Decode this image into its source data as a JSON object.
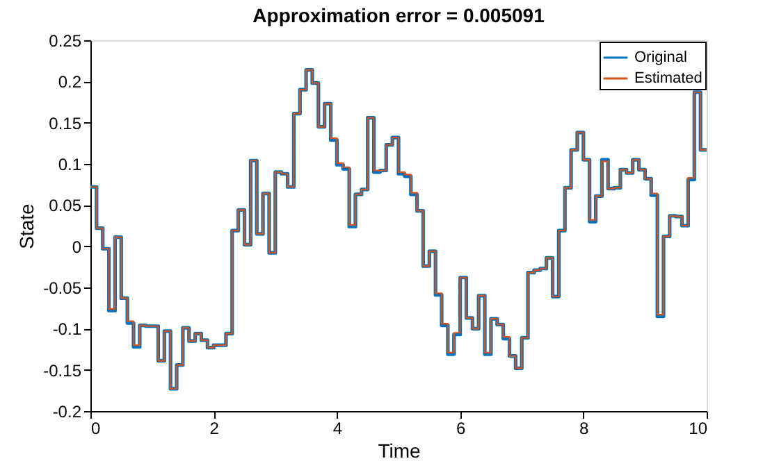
{
  "chart_data": {
    "type": "step",
    "title": "Approximation error =  0.005091",
    "xlabel": "Time",
    "ylabel": "State",
    "x": [
      0,
      0.1,
      0.2,
      0.3,
      0.4,
      0.5,
      0.6,
      0.7,
      0.8,
      0.9,
      1,
      1.1,
      1.2,
      1.3,
      1.4,
      1.5,
      1.6,
      1.7,
      1.8,
      1.9,
      2,
      2.1,
      2.2,
      2.3,
      2.4,
      2.5,
      2.6,
      2.7,
      2.8,
      2.9,
      3,
      3.1,
      3.2,
      3.3,
      3.4,
      3.5,
      3.6,
      3.7,
      3.8,
      3.9,
      4,
      4.1,
      4.2,
      4.3,
      4.4,
      4.5,
      4.6,
      4.7,
      4.8,
      4.9,
      5,
      5.1,
      5.2,
      5.3,
      5.4,
      5.5,
      5.6,
      5.7,
      5.8,
      5.9,
      6,
      6.1,
      6.2,
      6.3,
      6.4,
      6.5,
      6.6,
      6.7,
      6.8,
      6.9,
      7,
      7.1,
      7.2,
      7.3,
      7.4,
      7.5,
      7.6,
      7.7,
      7.8,
      7.9,
      8,
      8.1,
      8.2,
      8.3,
      8.4,
      8.5,
      8.6,
      8.7,
      8.8,
      8.9,
      9,
      9.1,
      9.2,
      9.3,
      9.4,
      9.5,
      9.6,
      9.7,
      9.8,
      9.9,
      10
    ],
    "series": [
      {
        "name": "Original",
        "color": "#0072bd",
        "values": [
          0.072,
          0.022,
          -0.003,
          -0.078,
          0.011,
          -0.063,
          -0.093,
          -0.122,
          -0.096,
          -0.097,
          -0.097,
          -0.139,
          -0.103,
          -0.173,
          -0.144,
          -0.099,
          -0.115,
          -0.106,
          -0.114,
          -0.123,
          -0.12,
          -0.12,
          -0.106,
          0.019,
          0.044,
          0.002,
          0.104,
          0.015,
          0.064,
          -0.008,
          0.09,
          0.088,
          0.072,
          0.161,
          0.19,
          0.214,
          0.198,
          0.145,
          0.173,
          0.129,
          0.099,
          0.094,
          0.024,
          0.063,
          0.069,
          0.156,
          0.09,
          0.092,
          0.123,
          0.132,
          0.088,
          0.085,
          0.063,
          0.043,
          -0.024,
          -0.006,
          -0.059,
          -0.096,
          -0.131,
          -0.107,
          -0.038,
          -0.087,
          -0.1,
          -0.06,
          -0.131,
          -0.088,
          -0.095,
          -0.112,
          -0.133,
          -0.148,
          -0.111,
          -0.032,
          -0.029,
          -0.027,
          -0.014,
          -0.061,
          0.019,
          0.071,
          0.117,
          0.138,
          0.105,
          0.03,
          0.061,
          0.105,
          0.07,
          0.071,
          0.093,
          0.089,
          0.105,
          0.093,
          0.082,
          0.062,
          -0.085,
          0.012,
          0.037,
          0.036,
          0.025,
          0.081,
          0.187,
          0.117,
          0.117
        ]
      },
      {
        "name": "Estimated",
        "color": "#d95319",
        "values": [
          0.072,
          0.022,
          -0.003,
          -0.076,
          0.011,
          -0.063,
          -0.091,
          -0.12,
          -0.096,
          -0.097,
          -0.097,
          -0.139,
          -0.103,
          -0.173,
          -0.144,
          -0.099,
          -0.115,
          -0.106,
          -0.114,
          -0.123,
          -0.12,
          -0.12,
          -0.106,
          0.019,
          0.044,
          0.002,
          0.104,
          0.015,
          0.064,
          -0.008,
          0.09,
          0.088,
          0.072,
          0.161,
          0.19,
          0.214,
          0.198,
          0.145,
          0.173,
          0.131,
          0.101,
          0.096,
          0.026,
          0.063,
          0.069,
          0.156,
          0.092,
          0.092,
          0.123,
          0.132,
          0.09,
          0.087,
          0.065,
          0.043,
          -0.024,
          -0.006,
          -0.057,
          -0.094,
          -0.129,
          -0.105,
          -0.038,
          -0.087,
          -0.1,
          -0.06,
          -0.129,
          -0.088,
          -0.095,
          -0.11,
          -0.133,
          -0.148,
          -0.111,
          -0.032,
          -0.029,
          -0.027,
          -0.014,
          -0.061,
          0.019,
          0.071,
          0.117,
          0.138,
          0.105,
          0.032,
          0.061,
          0.103,
          0.07,
          0.071,
          0.093,
          0.089,
          0.105,
          0.093,
          0.082,
          0.064,
          -0.083,
          0.012,
          0.037,
          0.036,
          0.025,
          0.083,
          0.187,
          0.117,
          0.117
        ]
      }
    ],
    "xlim": [
      0,
      10
    ],
    "xticks": [
      0,
      2,
      4,
      6,
      8,
      10
    ],
    "ylim": [
      -0.2,
      0.25
    ],
    "yticks": [
      -0.2,
      -0.15,
      -0.1,
      -0.05,
      0,
      0.05,
      0.1,
      0.15,
      0.2,
      0.25
    ],
    "legend": "top right",
    "grid": false,
    "line_style": "solid",
    "marker": "none"
  }
}
